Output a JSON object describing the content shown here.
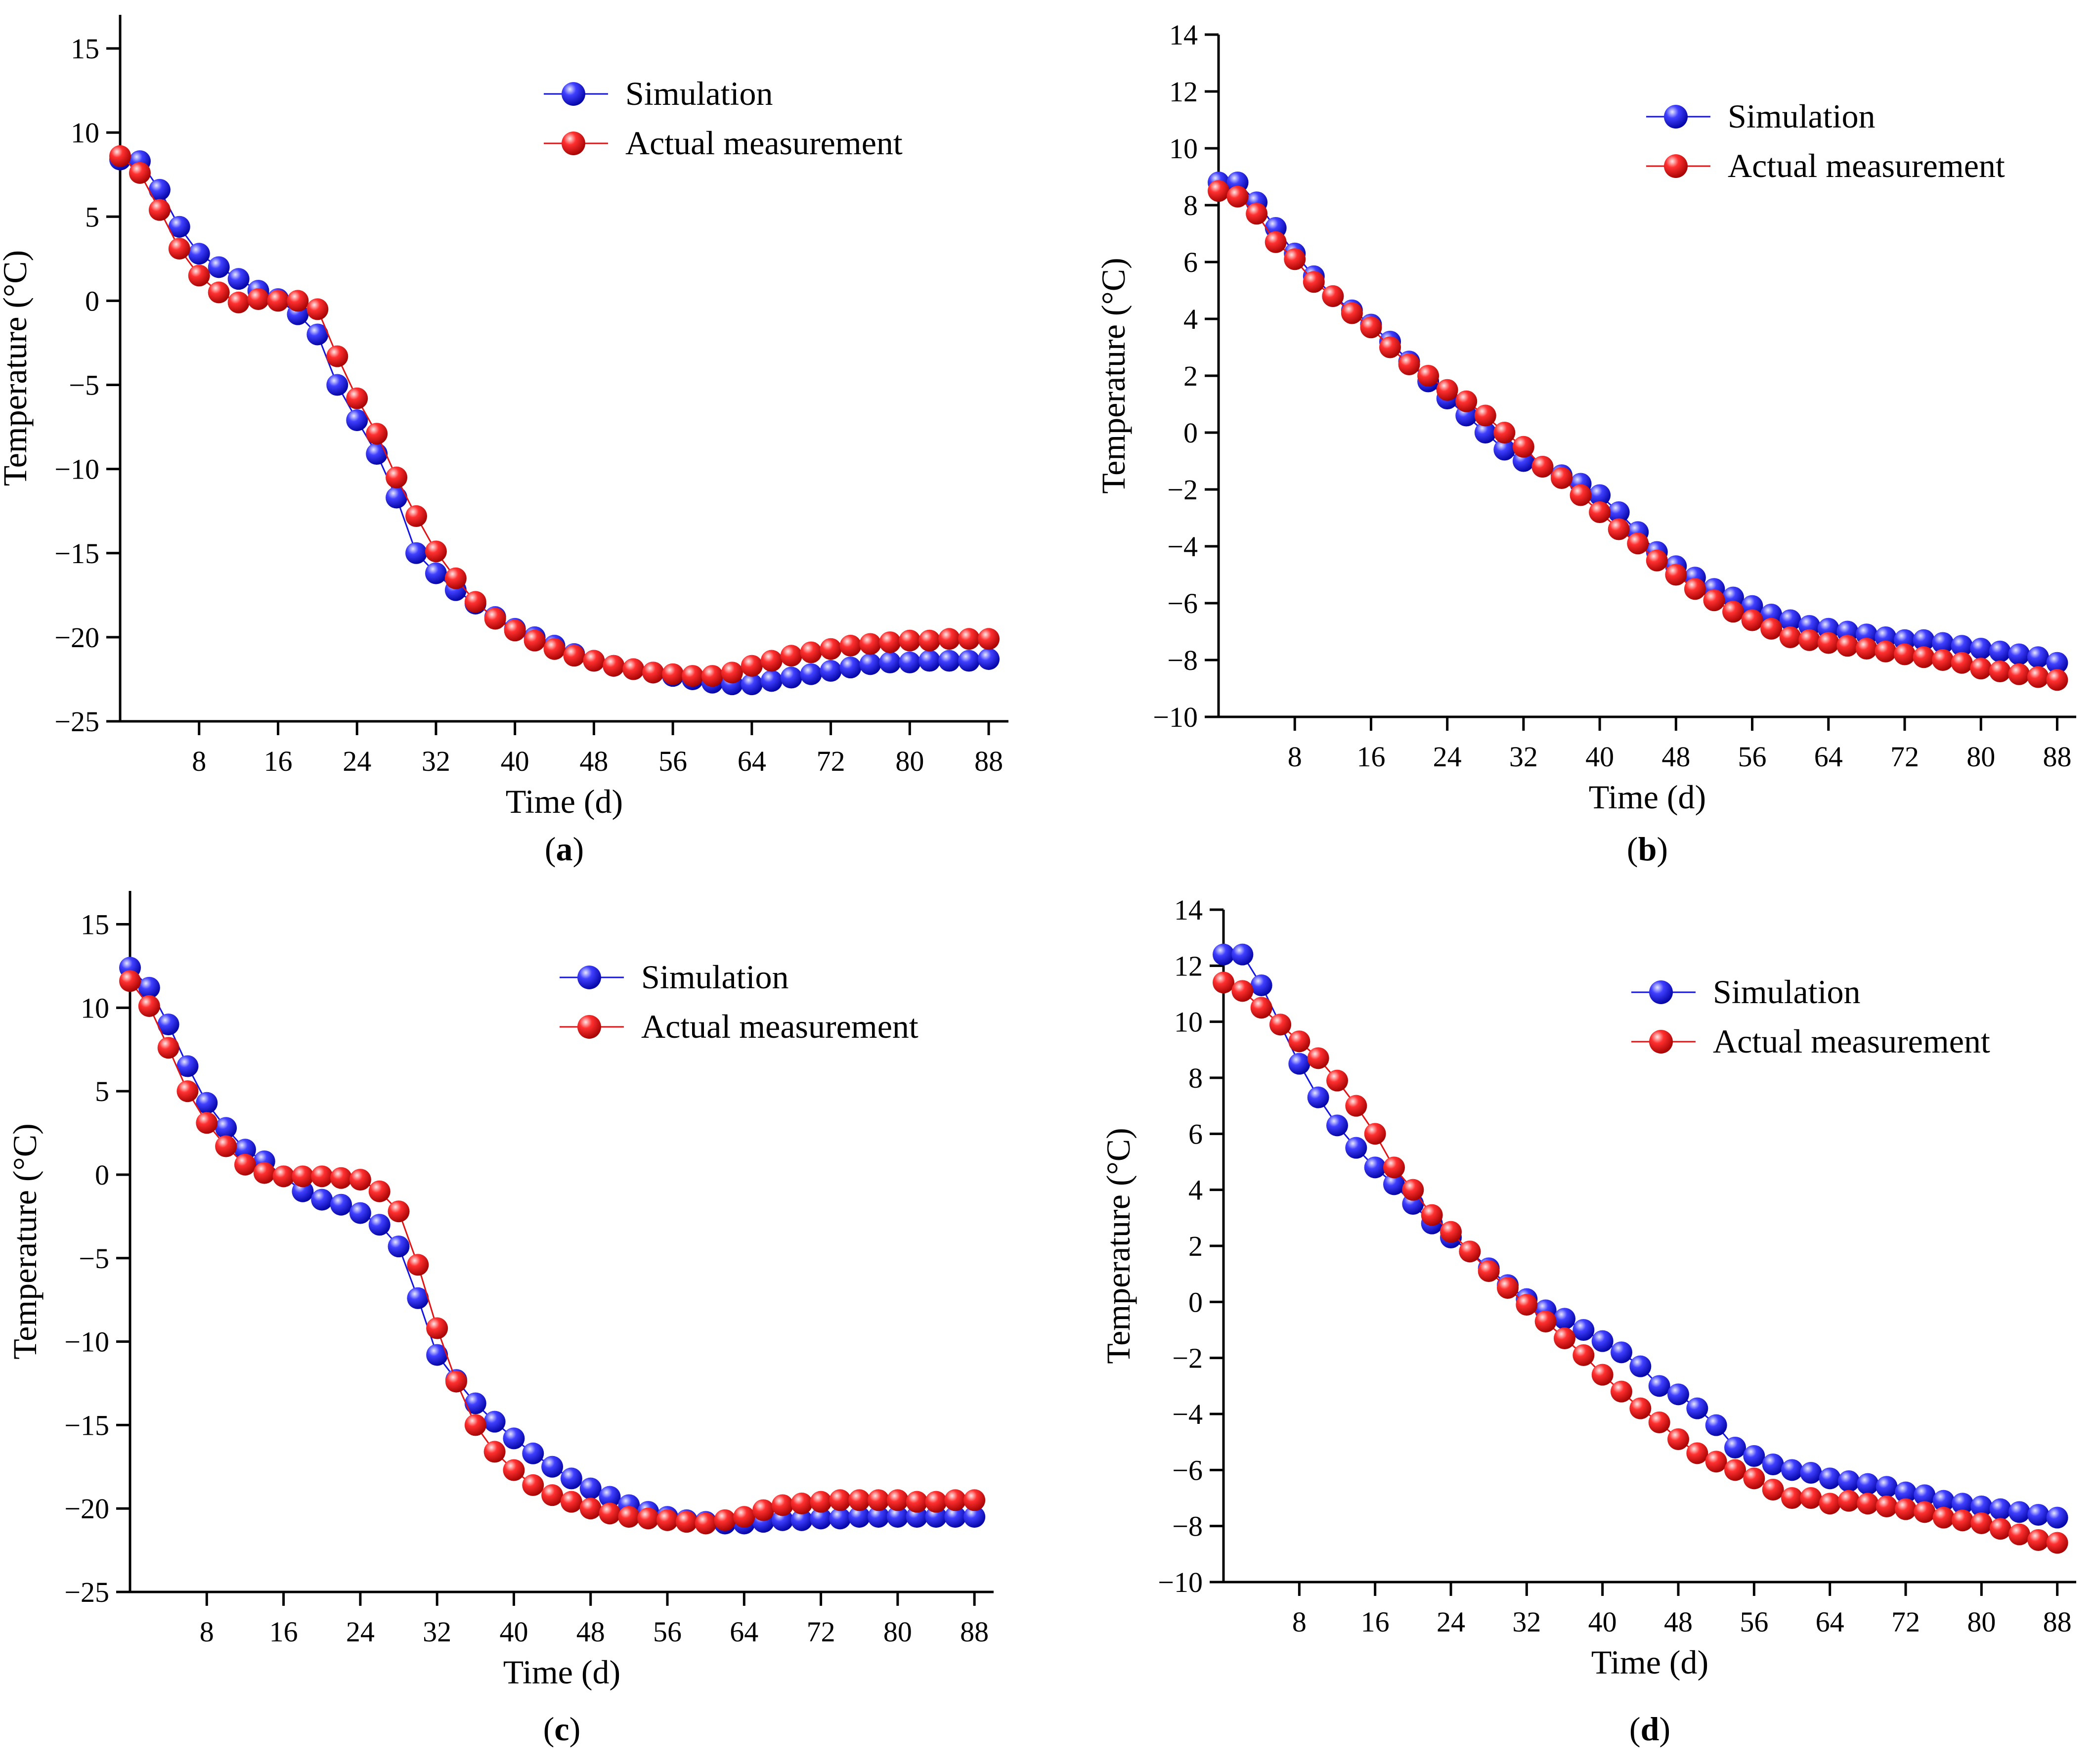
{
  "figure": {
    "colors": {
      "simulation": "#1414e0",
      "actual": "#e01414",
      "axis": "#000000"
    },
    "legend_labels": {
      "simulation": "Simulation",
      "actual": "Actual measurement"
    }
  },
  "chart_data": [
    {
      "panel": "a",
      "caption": "(a)",
      "type": "line",
      "xlabel": "Time (d)",
      "ylabel": "Temperature (°C)",
      "xlim": [
        0,
        90
      ],
      "ylim": [
        -25,
        17
      ],
      "xticks": [
        8,
        16,
        24,
        32,
        40,
        48,
        56,
        64,
        72,
        80,
        88
      ],
      "yticks": [
        -25,
        -20,
        -15,
        -10,
        -5,
        0,
        5,
        10,
        15
      ],
      "tick_labels": {
        "x": [
          "8",
          "16",
          "24",
          "32",
          "40",
          "48",
          "56",
          "64",
          "72",
          "80",
          "88"
        ],
        "y": [
          "−25",
          "−20",
          "−15",
          "−10",
          "−5",
          "0",
          "5",
          "10",
          "15"
        ]
      },
      "legend": "top-right",
      "x": [
        0,
        2,
        4,
        6,
        8,
        10,
        12,
        14,
        16,
        18,
        20,
        22,
        24,
        26,
        28,
        30,
        32,
        34,
        36,
        38,
        40,
        42,
        44,
        46,
        48,
        50,
        52,
        54,
        56,
        58,
        60,
        62,
        64,
        66,
        68,
        70,
        72,
        74,
        76,
        78,
        80,
        82,
        84,
        86,
        88
      ],
      "series": [
        {
          "name": "Simulation",
          "key": "simulation",
          "values": [
            8.4,
            8.3,
            6.6,
            4.4,
            2.8,
            2.0,
            1.3,
            0.6,
            0.1,
            -0.8,
            -2.0,
            -5.0,
            -7.1,
            -9.1,
            -11.7,
            -15.0,
            -16.2,
            -17.2,
            -18.0,
            -18.8,
            -19.5,
            -20.0,
            -20.5,
            -21.0,
            -21.4,
            -21.7,
            -21.9,
            -22.1,
            -22.3,
            -22.5,
            -22.7,
            -22.8,
            -22.8,
            -22.6,
            -22.4,
            -22.2,
            -22.0,
            -21.8,
            -21.6,
            -21.5,
            -21.5,
            -21.4,
            -21.4,
            -21.4,
            -21.3
          ]
        },
        {
          "name": "Actual measurement",
          "key": "actual",
          "values": [
            8.6,
            7.6,
            5.4,
            3.1,
            1.5,
            0.5,
            -0.1,
            0.1,
            0.0,
            0.0,
            -0.5,
            -3.3,
            -5.8,
            -7.9,
            -10.5,
            -12.8,
            -14.9,
            -16.5,
            -17.9,
            -18.9,
            -19.6,
            -20.2,
            -20.7,
            -21.1,
            -21.4,
            -21.7,
            -21.9,
            -22.1,
            -22.2,
            -22.3,
            -22.3,
            -22.1,
            -21.7,
            -21.4,
            -21.1,
            -20.9,
            -20.7,
            -20.5,
            -20.4,
            -20.3,
            -20.2,
            -20.2,
            -20.1,
            -20.1,
            -20.1
          ]
        }
      ]
    },
    {
      "panel": "b",
      "caption": "(b)",
      "type": "line",
      "xlabel": "Time (d)",
      "ylabel": "Temperature (°C)",
      "xlim": [
        0,
        90
      ],
      "ylim": [
        -10,
        14
      ],
      "xticks": [
        8,
        16,
        24,
        32,
        40,
        48,
        56,
        64,
        72,
        80,
        88
      ],
      "yticks": [
        -10,
        -8,
        -6,
        -4,
        -2,
        0,
        2,
        4,
        6,
        8,
        10,
        12,
        14
      ],
      "tick_labels": {
        "x": [
          "8",
          "16",
          "24",
          "32",
          "40",
          "48",
          "56",
          "64",
          "72",
          "80",
          "88"
        ],
        "y": [
          "−10",
          "−8",
          "−6",
          "−4",
          "−2",
          "0",
          "2",
          "4",
          "6",
          "8",
          "10",
          "12",
          "14"
        ]
      },
      "legend": "top-right",
      "x": [
        0,
        2,
        4,
        6,
        8,
        10,
        12,
        14,
        16,
        18,
        20,
        22,
        24,
        26,
        28,
        30,
        32,
        34,
        36,
        38,
        40,
        42,
        44,
        46,
        48,
        50,
        52,
        54,
        56,
        58,
        60,
        62,
        64,
        66,
        68,
        70,
        72,
        74,
        76,
        78,
        80,
        82,
        84,
        86,
        88
      ],
      "series": [
        {
          "name": "Simulation",
          "key": "simulation",
          "values": [
            8.8,
            8.8,
            8.1,
            7.2,
            6.3,
            5.5,
            4.8,
            4.3,
            3.8,
            3.2,
            2.5,
            1.8,
            1.2,
            0.6,
            0.0,
            -0.6,
            -1.0,
            -1.2,
            -1.5,
            -1.8,
            -2.2,
            -2.8,
            -3.5,
            -4.2,
            -4.7,
            -5.1,
            -5.5,
            -5.8,
            -6.1,
            -6.4,
            -6.6,
            -6.8,
            -6.9,
            -7.0,
            -7.1,
            -7.2,
            -7.3,
            -7.3,
            -7.4,
            -7.5,
            -7.6,
            -7.7,
            -7.8,
            -7.9,
            -8.1
          ]
        },
        {
          "name": "Actual measurement",
          "key": "actual",
          "values": [
            8.5,
            8.3,
            7.7,
            6.7,
            6.1,
            5.3,
            4.8,
            4.2,
            3.7,
            3.0,
            2.4,
            2.0,
            1.5,
            1.1,
            0.6,
            0.0,
            -0.5,
            -1.2,
            -1.6,
            -2.2,
            -2.8,
            -3.4,
            -3.9,
            -4.5,
            -5.0,
            -5.5,
            -5.9,
            -6.3,
            -6.6,
            -6.9,
            -7.2,
            -7.3,
            -7.4,
            -7.5,
            -7.6,
            -7.7,
            -7.8,
            -7.9,
            -8.0,
            -8.1,
            -8.3,
            -8.4,
            -8.5,
            -8.6,
            -8.7
          ]
        }
      ]
    },
    {
      "panel": "c",
      "caption": "(c)",
      "type": "line",
      "xlabel": "Time (d)",
      "ylabel": "Temperature (°C)",
      "xlim": [
        0,
        90
      ],
      "ylim": [
        -25,
        17
      ],
      "xticks": [
        8,
        16,
        24,
        32,
        40,
        48,
        56,
        64,
        72,
        80,
        88
      ],
      "yticks": [
        -25,
        -20,
        -15,
        -10,
        -5,
        0,
        5,
        10,
        15
      ],
      "tick_labels": {
        "x": [
          "8",
          "16",
          "24",
          "32",
          "40",
          "48",
          "56",
          "64",
          "72",
          "80",
          "88"
        ],
        "y": [
          "−25",
          "−20",
          "−15",
          "−10",
          "−5",
          "0",
          "5",
          "10",
          "15"
        ]
      },
      "legend": "top-right",
      "x": [
        0,
        2,
        4,
        6,
        8,
        10,
        12,
        14,
        16,
        18,
        20,
        22,
        24,
        26,
        28,
        30,
        32,
        34,
        36,
        38,
        40,
        42,
        44,
        46,
        48,
        50,
        52,
        54,
        56,
        58,
        60,
        62,
        64,
        66,
        68,
        70,
        72,
        74,
        76,
        78,
        80,
        82,
        84,
        86,
        88
      ],
      "series": [
        {
          "name": "Simulation",
          "key": "simulation",
          "values": [
            12.4,
            11.2,
            9.0,
            6.5,
            4.3,
            2.8,
            1.5,
            0.8,
            -0.1,
            -1.0,
            -1.5,
            -1.8,
            -2.3,
            -3.0,
            -4.3,
            -7.4,
            -10.8,
            -12.3,
            -13.7,
            -14.8,
            -15.8,
            -16.7,
            -17.5,
            -18.2,
            -18.8,
            -19.3,
            -19.8,
            -20.2,
            -20.5,
            -20.7,
            -20.8,
            -20.9,
            -20.9,
            -20.8,
            -20.7,
            -20.7,
            -20.6,
            -20.6,
            -20.5,
            -20.5,
            -20.5,
            -20.5,
            -20.5,
            -20.5,
            -20.5
          ]
        },
        {
          "name": "Actual measurement",
          "key": "actual",
          "values": [
            11.6,
            10.1,
            7.6,
            5.0,
            3.1,
            1.7,
            0.6,
            0.1,
            -0.1,
            -0.1,
            -0.1,
            -0.2,
            -0.3,
            -1.0,
            -2.2,
            -5.4,
            -9.2,
            -12.4,
            -15.0,
            -16.6,
            -17.7,
            -18.6,
            -19.2,
            -19.6,
            -20.0,
            -20.3,
            -20.5,
            -20.6,
            -20.7,
            -20.8,
            -20.9,
            -20.7,
            -20.5,
            -20.1,
            -19.8,
            -19.7,
            -19.6,
            -19.5,
            -19.5,
            -19.5,
            -19.5,
            -19.6,
            -19.6,
            -19.5,
            -19.5
          ]
        }
      ]
    },
    {
      "panel": "d",
      "caption": "(d)",
      "type": "line",
      "xlabel": "Time (d)",
      "ylabel": "Temperature (°C)",
      "xlim": [
        0,
        90
      ],
      "ylim": [
        -10,
        14
      ],
      "xticks": [
        8,
        16,
        24,
        32,
        40,
        48,
        56,
        64,
        72,
        80,
        88
      ],
      "yticks": [
        -10,
        -8,
        -6,
        -4,
        -2,
        0,
        2,
        4,
        6,
        8,
        10,
        12,
        14
      ],
      "tick_labels": {
        "x": [
          "8",
          "16",
          "24",
          "32",
          "40",
          "48",
          "56",
          "64",
          "72",
          "80",
          "88"
        ],
        "y": [
          "−10",
          "−8",
          "−6",
          "−4",
          "−2",
          "0",
          "2",
          "4",
          "6",
          "8",
          "10",
          "12",
          "14"
        ]
      },
      "legend": "top-right",
      "x": [
        0,
        2,
        4,
        6,
        8,
        10,
        12,
        14,
        16,
        18,
        20,
        22,
        24,
        26,
        28,
        30,
        32,
        34,
        36,
        38,
        40,
        42,
        44,
        46,
        48,
        50,
        52,
        54,
        56,
        58,
        60,
        62,
        64,
        66,
        68,
        70,
        72,
        74,
        76,
        78,
        80,
        82,
        84,
        86,
        88
      ],
      "series": [
        {
          "name": "Simulation",
          "key": "simulation",
          "values": [
            12.4,
            12.4,
            11.3,
            9.9,
            8.5,
            7.3,
            6.3,
            5.5,
            4.8,
            4.2,
            3.5,
            2.8,
            2.3,
            1.8,
            1.2,
            0.6,
            0.1,
            -0.3,
            -0.6,
            -1.0,
            -1.4,
            -1.8,
            -2.3,
            -3.0,
            -3.3,
            -3.8,
            -4.4,
            -5.2,
            -5.5,
            -5.8,
            -6.0,
            -6.1,
            -6.3,
            -6.4,
            -6.5,
            -6.6,
            -6.8,
            -6.9,
            -7.1,
            -7.2,
            -7.3,
            -7.4,
            -7.5,
            -7.6,
            -7.7
          ]
        },
        {
          "name": "Actual measurement",
          "key": "actual",
          "values": [
            11.4,
            11.1,
            10.5,
            9.9,
            9.3,
            8.7,
            7.9,
            7.0,
            6.0,
            4.8,
            4.0,
            3.1,
            2.5,
            1.8,
            1.1,
            0.5,
            -0.1,
            -0.7,
            -1.3,
            -1.9,
            -2.6,
            -3.2,
            -3.8,
            -4.3,
            -4.9,
            -5.4,
            -5.7,
            -6.0,
            -6.3,
            -6.7,
            -7.0,
            -7.0,
            -7.2,
            -7.1,
            -7.2,
            -7.3,
            -7.4,
            -7.5,
            -7.7,
            -7.8,
            -7.9,
            -8.1,
            -8.3,
            -8.5,
            -8.6
          ]
        }
      ]
    }
  ]
}
